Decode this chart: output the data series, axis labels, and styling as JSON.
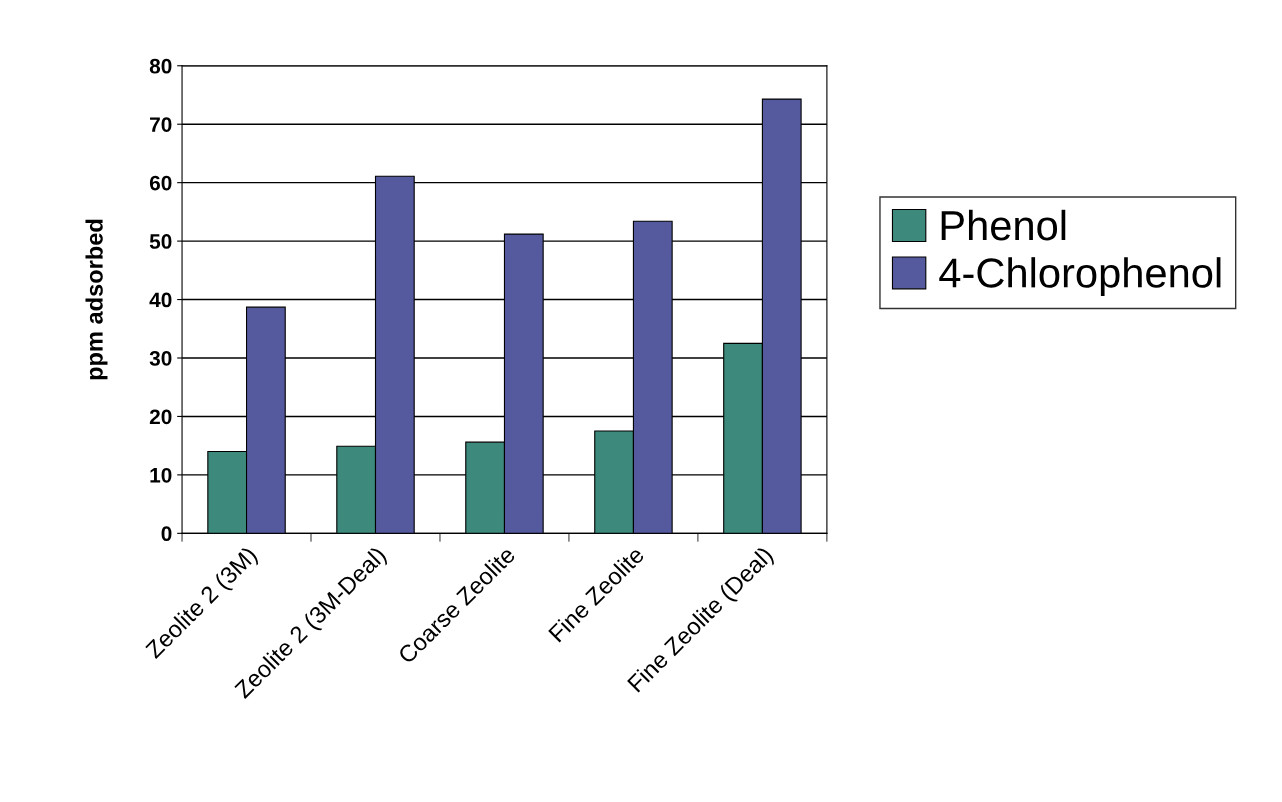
{
  "chart_data": {
    "type": "bar",
    "ylabel": "ppm adsorbed",
    "categories": [
      "Zeolite 2 (3M)",
      "Zeolite 2 (3M-Deal)",
      "Coarse Zeolite",
      "Fine Zeolite",
      "Fine Zeolite (Deal)"
    ],
    "series": [
      {
        "name": "Phenol",
        "color": "#3d8a7c",
        "values": [
          14.0,
          14.9,
          15.6,
          17.5,
          32.5
        ]
      },
      {
        "name": "4-Chlorophenol",
        "color": "#55599e",
        "values": [
          38.7,
          61.1,
          51.2,
          53.4,
          74.3
        ]
      }
    ],
    "ylim": [
      0,
      80
    ],
    "yticks": [
      0,
      10,
      20,
      30,
      40,
      50,
      60,
      70,
      80
    ],
    "grid": "y",
    "legend": "right"
  }
}
